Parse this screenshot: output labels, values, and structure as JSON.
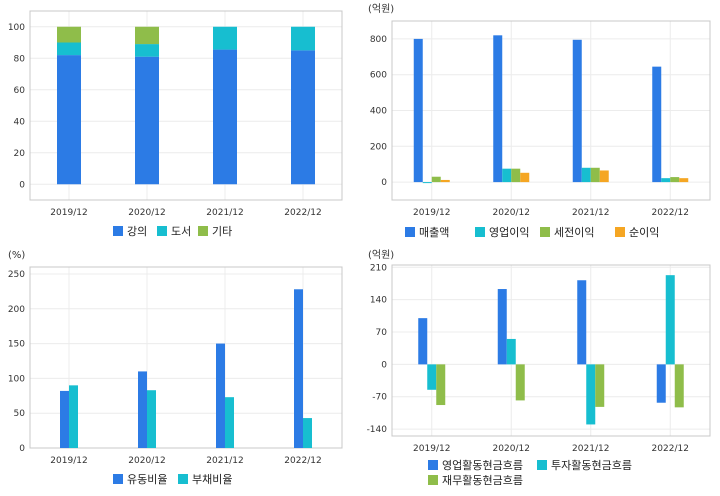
{
  "chart_data": [
    {
      "type": "bar",
      "stacked": true,
      "unit": "",
      "categories": [
        "2019/12",
        "2020/12",
        "2021/12",
        "2022/12"
      ],
      "series": [
        {
          "name": "강의",
          "color": "#2c7be5",
          "values": [
            82,
            81,
            85.5,
            85
          ]
        },
        {
          "name": "도서",
          "color": "#17bed0",
          "values": [
            8,
            8,
            14.5,
            15
          ]
        },
        {
          "name": "기타",
          "color": "#8fbd4a",
          "values": [
            10,
            11,
            0,
            0
          ]
        }
      ],
      "ylim": [
        -10,
        110
      ],
      "yticks": [
        0,
        20,
        40,
        60,
        80,
        100
      ],
      "grid": true,
      "legend": "bottom"
    },
    {
      "type": "bar",
      "unit": "(억원)",
      "categories": [
        "2019/12",
        "2020/12",
        "2021/12",
        "2022/12"
      ],
      "series": [
        {
          "name": "매출액",
          "color": "#2c7be5",
          "values": [
            800,
            820,
            795,
            645
          ]
        },
        {
          "name": "영업이익",
          "color": "#17bed0",
          "values": [
            -5,
            75,
            80,
            22
          ]
        },
        {
          "name": "세전이익",
          "color": "#8fbd4a",
          "values": [
            30,
            75,
            80,
            28
          ]
        },
        {
          "name": "순이익",
          "color": "#f5a623",
          "values": [
            12,
            52,
            65,
            22
          ]
        }
      ],
      "ylim": [
        -100,
        900
      ],
      "yticks": [
        0,
        200,
        400,
        600,
        800
      ],
      "grid": true,
      "legend": "bottom"
    },
    {
      "type": "bar",
      "unit": "(%)",
      "categories": [
        "2019/12",
        "2020/12",
        "2021/12",
        "2022/12"
      ],
      "series": [
        {
          "name": "유동비율",
          "color": "#2c7be5",
          "values": [
            82,
            110,
            150,
            228
          ]
        },
        {
          "name": "부채비율",
          "color": "#17bed0",
          "values": [
            90,
            83,
            73,
            43
          ]
        }
      ],
      "ylim": [
        0,
        260
      ],
      "yticks": [
        0,
        50,
        100,
        150,
        200,
        250
      ],
      "grid": true,
      "legend": "bottom"
    },
    {
      "type": "bar",
      "unit": "(억원)",
      "categories": [
        "2019/12",
        "2020/12",
        "2021/12",
        "2022/12"
      ],
      "series": [
        {
          "name": "영업활동현금흐름",
          "color": "#2c7be5",
          "values": [
            100,
            163,
            182,
            -83
          ]
        },
        {
          "name": "투자활동현금흐름",
          "color": "#17bed0",
          "values": [
            -55,
            55,
            -130,
            193
          ]
        },
        {
          "name": "재무활동현금흐름",
          "color": "#8fbd4a",
          "values": [
            -88,
            -78,
            -92,
            -93
          ]
        }
      ],
      "ylim": [
        -155,
        215
      ],
      "yticks": [
        -140,
        -70,
        0,
        70,
        140,
        210
      ],
      "grid": true,
      "legend": "bottom"
    }
  ]
}
